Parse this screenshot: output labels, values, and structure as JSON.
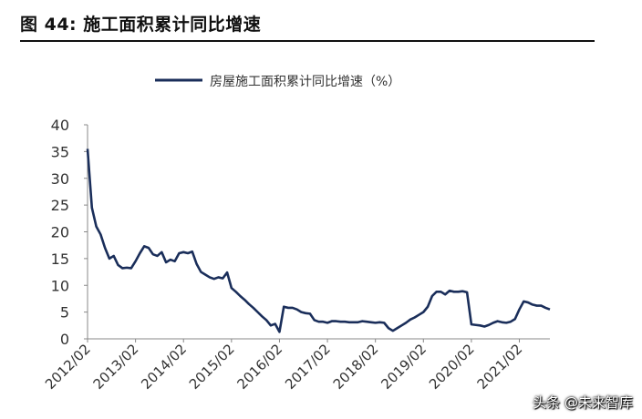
{
  "figure": {
    "label": "图 44:  施工面积累计同比增速"
  },
  "watermark": "头条 @未来智库",
  "chart_data": {
    "type": "line",
    "title": "",
    "xlabel": "",
    "ylabel": "",
    "ylim": [
      0,
      40
    ],
    "yticks": [
      0,
      5,
      10,
      15,
      20,
      25,
      30,
      35,
      40
    ],
    "xticks": [
      "2012/02",
      "2013/02",
      "2014/02",
      "2015/02",
      "2016/02",
      "2017/02",
      "2018/02",
      "2019/02",
      "2020/02",
      "2021/02"
    ],
    "grid": false,
    "legend_position": "top-center",
    "color": "#1a2e5a",
    "series": [
      {
        "name": "房屋施工面积累计同比增速（%）",
        "x": [
          "2012/02",
          "2012/03",
          "2012/04",
          "2012/05",
          "2012/06",
          "2012/07",
          "2012/08",
          "2012/09",
          "2012/10",
          "2012/11",
          "2012/12",
          "2013/02",
          "2013/03",
          "2013/04",
          "2013/05",
          "2013/06",
          "2013/07",
          "2013/08",
          "2013/09",
          "2013/10",
          "2013/11",
          "2013/12",
          "2014/02",
          "2014/03",
          "2014/04",
          "2014/05",
          "2014/06",
          "2014/07",
          "2014/08",
          "2014/09",
          "2014/10",
          "2014/11",
          "2014/12",
          "2015/02",
          "2015/03",
          "2015/04",
          "2015/05",
          "2015/06",
          "2015/07",
          "2015/08",
          "2015/09",
          "2015/10",
          "2015/11",
          "2015/12",
          "2016/02",
          "2016/03",
          "2016/04",
          "2016/05",
          "2016/06",
          "2016/07",
          "2016/08",
          "2016/09",
          "2016/10",
          "2016/11",
          "2016/12",
          "2017/02",
          "2017/03",
          "2017/04",
          "2017/05",
          "2017/06",
          "2017/07",
          "2017/08",
          "2017/09",
          "2017/10",
          "2017/11",
          "2017/12",
          "2018/02",
          "2018/03",
          "2018/04",
          "2018/05",
          "2018/06",
          "2018/07",
          "2018/08",
          "2018/09",
          "2018/10",
          "2018/11",
          "2018/12",
          "2019/02",
          "2019/03",
          "2019/04",
          "2019/05",
          "2019/06",
          "2019/07",
          "2019/08",
          "2019/09",
          "2019/10",
          "2019/11",
          "2019/12",
          "2020/02",
          "2020/03",
          "2020/04",
          "2020/05",
          "2020/06",
          "2020/07",
          "2020/08",
          "2020/09",
          "2020/10",
          "2020/11",
          "2020/12",
          "2021/02",
          "2021/03",
          "2021/04",
          "2021/05",
          "2021/06",
          "2021/07",
          "2021/08",
          "2021/09"
        ],
        "values": [
          35.5,
          24.5,
          21.0,
          19.5,
          17.0,
          15.0,
          15.5,
          13.8,
          13.2,
          13.3,
          13.2,
          14.5,
          16.0,
          17.3,
          17.0,
          15.8,
          15.5,
          16.2,
          14.3,
          14.8,
          14.5,
          16.0,
          16.2,
          16.0,
          16.3,
          14.0,
          12.5,
          12.0,
          11.5,
          11.2,
          11.5,
          11.3,
          12.4,
          9.5,
          8.8,
          8.0,
          7.3,
          6.5,
          5.8,
          5.0,
          4.2,
          3.5,
          2.5,
          2.8,
          1.3,
          6.0,
          5.8,
          5.8,
          5.5,
          5.0,
          4.8,
          4.7,
          3.5,
          3.2,
          3.2,
          3.0,
          3.3,
          3.3,
          3.2,
          3.2,
          3.1,
          3.1,
          3.1,
          3.3,
          3.2,
          3.1,
          3.0,
          3.1,
          3.0,
          2.0,
          1.5,
          2.0,
          2.5,
          3.0,
          3.6,
          4.0,
          4.5,
          5.0,
          6.0,
          8.0,
          8.8,
          8.8,
          8.3,
          9.0,
          8.8,
          8.8,
          8.9,
          8.7,
          2.7,
          2.6,
          2.5,
          2.3,
          2.6,
          3.0,
          3.3,
          3.1,
          3.0,
          3.2,
          3.7,
          5.5,
          7.0,
          6.8,
          6.4,
          6.2,
          6.2,
          5.8,
          5.5
        ]
      }
    ]
  }
}
